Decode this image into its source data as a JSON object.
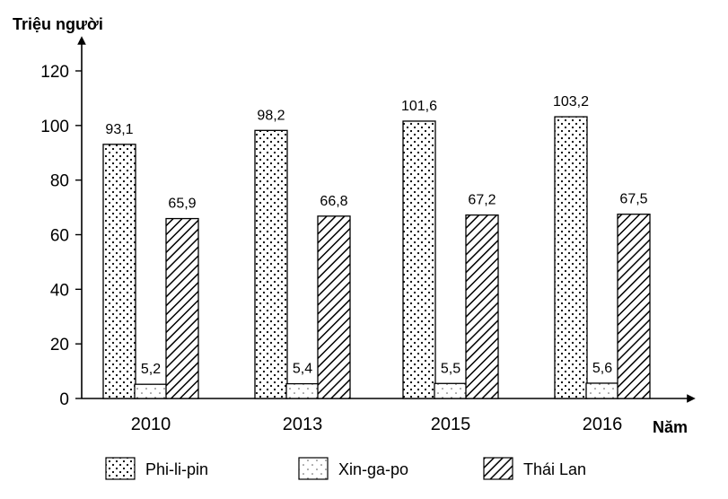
{
  "chart_data": {
    "type": "bar",
    "ylabel": "Triệu người",
    "xlabel": "Năm",
    "categories": [
      "2010",
      "2013",
      "2015",
      "2016"
    ],
    "ylim": [
      0,
      120
    ],
    "yticks": [
      0,
      20,
      40,
      60,
      80,
      100,
      120
    ],
    "series": [
      {
        "name": "Phi-li-pin",
        "values": [
          93.1,
          98.2,
          101.6,
          103.2
        ],
        "labels": [
          "93,1",
          "98,2",
          "101,6",
          "103,2"
        ],
        "pattern": "dots"
      },
      {
        "name": "Xin-ga-po",
        "values": [
          5.2,
          5.4,
          5.5,
          5.6
        ],
        "labels": [
          "5,2",
          "5,4",
          "5,5",
          "5,6"
        ],
        "pattern": "sparse-dots"
      },
      {
        "name": "Thái Lan",
        "values": [
          65.9,
          66.8,
          67.2,
          67.5
        ],
        "labels": [
          "65,9",
          "66,8",
          "67,2",
          "67,5"
        ],
        "pattern": "hatch"
      }
    ],
    "grid": false,
    "legend_position": "bottom"
  }
}
